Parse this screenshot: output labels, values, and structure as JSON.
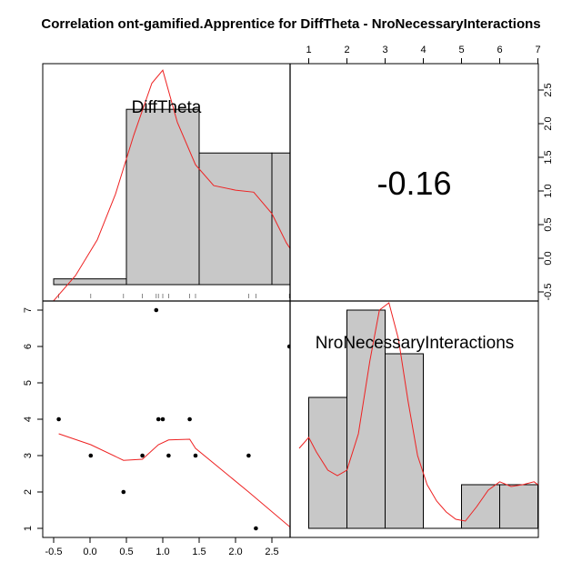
{
  "chart_data": {
    "type": "scatter",
    "title": "Correlation ont-gamified.Apprentice for DiffTheta - NroNecessaryInteractions",
    "variables": [
      "DiffTheta",
      "NroNecessaryInteractions"
    ],
    "correlation_label": "-0.16",
    "x_axis": {
      "range": [
        -0.55,
        2.85
      ],
      "ticks": [
        "-0.5",
        "0.0",
        "0.5",
        "1.0",
        "1.5",
        "2.0",
        "2.5"
      ],
      "tick_values": [
        -0.5,
        0,
        0.5,
        1,
        1.5,
        2,
        2.5
      ]
    },
    "y_axis": {
      "range": [
        0.75,
        7.25
      ],
      "ticks": [
        "1",
        "2",
        "3",
        "4",
        "5",
        "6",
        "7"
      ],
      "tick_values": [
        1,
        2,
        3,
        4,
        5,
        6,
        7
      ]
    },
    "top_axis": {
      "range": [
        0.75,
        7.25
      ],
      "ticks": [
        "1",
        "2",
        "3",
        "4",
        "5",
        "6",
        "7"
      ],
      "tick_values": [
        1,
        2,
        3,
        4,
        5,
        6,
        7
      ]
    },
    "right_axis": {
      "range": [
        -0.55,
        2.85
      ],
      "ticks": [
        "-0.5",
        "0.0",
        "0.5",
        "1.0",
        "1.5",
        "2.0",
        "2.5"
      ],
      "tick_values": [
        -0.5,
        0,
        0.5,
        1,
        1.5,
        2,
        2.5
      ]
    },
    "scatter_points": [
      {
        "x": -0.43,
        "y": 4
      },
      {
        "x": 0.01,
        "y": 3
      },
      {
        "x": 0.46,
        "y": 2
      },
      {
        "x": 0.72,
        "y": 3
      },
      {
        "x": 0.91,
        "y": 7
      },
      {
        "x": 0.94,
        "y": 4
      },
      {
        "x": 1.0,
        "y": 4
      },
      {
        "x": 1.08,
        "y": 3
      },
      {
        "x": 1.37,
        "y": 4
      },
      {
        "x": 1.45,
        "y": 3
      },
      {
        "x": 2.18,
        "y": 3
      },
      {
        "x": 2.28,
        "y": 1
      },
      {
        "x": 2.74,
        "y": 6
      },
      {
        "x": 2.77,
        "y": 1
      }
    ],
    "smooth_line": [
      {
        "x": -0.43,
        "y": 3.6
      },
      {
        "x": 0.01,
        "y": 3.3
      },
      {
        "x": 0.46,
        "y": 2.87
      },
      {
        "x": 0.72,
        "y": 2.9
      },
      {
        "x": 0.94,
        "y": 3.3
      },
      {
        "x": 1.08,
        "y": 3.43
      },
      {
        "x": 1.37,
        "y": 3.45
      },
      {
        "x": 1.45,
        "y": 3.2
      },
      {
        "x": 2.18,
        "y": 2.0
      },
      {
        "x": 2.77,
        "y": 1.0
      }
    ],
    "hist_difftheta": {
      "breaks": [
        -0.5,
        0.5,
        1.5,
        2.5,
        3.5
      ],
      "heights": [
        0.2,
        2.8,
        2.13,
        2.13
      ],
      "rug": [
        -0.43,
        0.01,
        0.46,
        0.72,
        0.91,
        0.94,
        1.0,
        1.08,
        1.37,
        1.45,
        2.18,
        2.28,
        2.74,
        2.77
      ],
      "density": [
        {
          "x": -0.55,
          "y": -0.2
        },
        {
          "x": -0.2,
          "y": 0.25
        },
        {
          "x": 0.1,
          "y": 0.8
        },
        {
          "x": 0.35,
          "y": 1.5
        },
        {
          "x": 0.6,
          "y": 2.4
        },
        {
          "x": 0.85,
          "y": 3.2
        },
        {
          "x": 1.0,
          "y": 3.4
        },
        {
          "x": 1.2,
          "y": 2.6
        },
        {
          "x": 1.45,
          "y": 1.95
        },
        {
          "x": 1.7,
          "y": 1.63
        },
        {
          "x": 2.0,
          "y": 1.56
        },
        {
          "x": 2.25,
          "y": 1.53
        },
        {
          "x": 2.5,
          "y": 1.2
        },
        {
          "x": 2.7,
          "y": 0.75
        },
        {
          "x": 2.85,
          "y": 0.5
        }
      ]
    },
    "hist_nro": {
      "breaks": [
        1,
        2,
        3,
        4,
        5,
        6,
        7
      ],
      "heights": [
        4.6,
        7.0,
        5.8,
        1.0,
        2.2,
        2.2
      ],
      "density": [
        {
          "x": 0.75,
          "y": 3.2
        },
        {
          "x": 1.0,
          "y": 3.5
        },
        {
          "x": 1.2,
          "y": 3.1
        },
        {
          "x": 1.5,
          "y": 2.6
        },
        {
          "x": 1.75,
          "y": 2.45
        },
        {
          "x": 2.0,
          "y": 2.6
        },
        {
          "x": 2.3,
          "y": 3.6
        },
        {
          "x": 2.6,
          "y": 5.6
        },
        {
          "x": 2.85,
          "y": 7.0
        },
        {
          "x": 3.1,
          "y": 7.2
        },
        {
          "x": 3.35,
          "y": 6.2
        },
        {
          "x": 3.6,
          "y": 4.5
        },
        {
          "x": 3.85,
          "y": 3.0
        },
        {
          "x": 4.1,
          "y": 2.2
        },
        {
          "x": 4.35,
          "y": 1.75
        },
        {
          "x": 4.6,
          "y": 1.45
        },
        {
          "x": 4.85,
          "y": 1.25
        },
        {
          "x": 5.1,
          "y": 1.2
        },
        {
          "x": 5.4,
          "y": 1.6
        },
        {
          "x": 5.7,
          "y": 2.05
        },
        {
          "x": 6.0,
          "y": 2.28
        },
        {
          "x": 6.3,
          "y": 2.15
        },
        {
          "x": 6.6,
          "y": 2.2
        },
        {
          "x": 6.9,
          "y": 2.28
        },
        {
          "x": 7.25,
          "y": 2.0
        }
      ]
    },
    "colors": {
      "bar_fill": "#c8c8c8",
      "density_line": "#ee2222",
      "smooth_line": "#ee2222",
      "point": "#000000"
    }
  }
}
